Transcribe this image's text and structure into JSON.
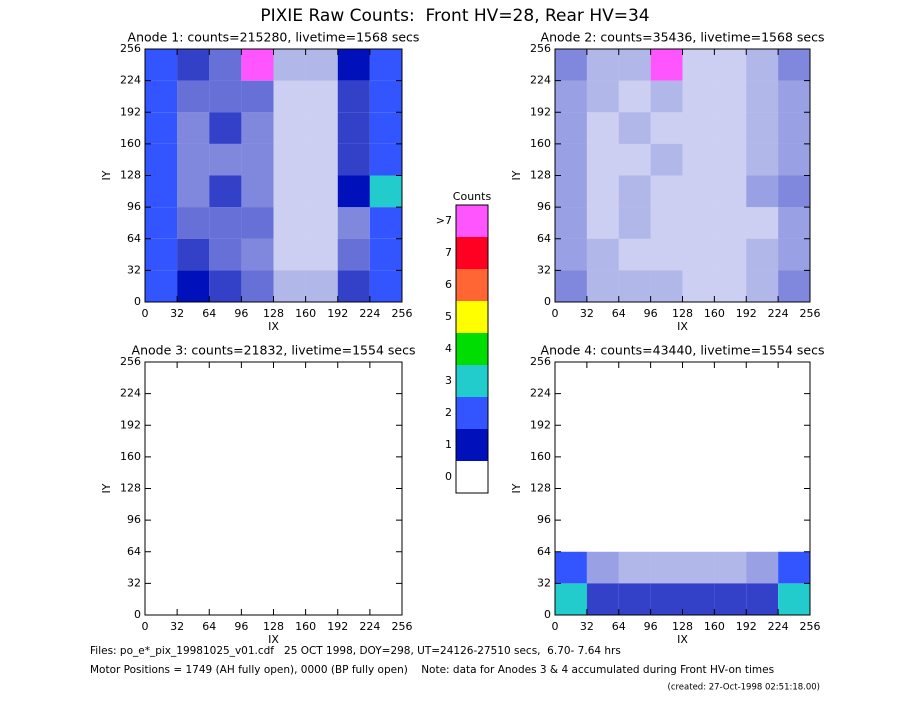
{
  "title": "PIXIE Raw Counts:  Front HV=28, Rear HV=34",
  "chart_data": [
    {
      "type": "heatmap",
      "title": "Anode 1: counts=215280, livetime=1568 secs",
      "xlabel": "IX",
      "ylabel": "IY",
      "xlim": [
        0,
        256
      ],
      "ylim": [
        0,
        256
      ],
      "xticks": [
        0,
        32,
        64,
        96,
        128,
        160,
        192,
        224,
        256
      ],
      "yticks": [
        0,
        32,
        64,
        96,
        128,
        160,
        192,
        224,
        256
      ],
      "values": [
        [
          2,
          1,
          0.8,
          0.6,
          0.3,
          0.3,
          0.8,
          2
        ],
        [
          1.8,
          0.8,
          0.6,
          0.5,
          0.2,
          0.2,
          0.6,
          1.8
        ],
        [
          1.5,
          0.6,
          0.6,
          0.6,
          0.2,
          0.2,
          0.5,
          1.5
        ],
        [
          1.5,
          0.5,
          0.8,
          0.5,
          0.2,
          0.2,
          1,
          3
        ],
        [
          1.5,
          0.5,
          0.5,
          0.5,
          0.2,
          0.2,
          0.8,
          2
        ],
        [
          1.5,
          0.5,
          0.8,
          0.5,
          0.2,
          0.2,
          0.8,
          1.8
        ],
        [
          1.5,
          0.6,
          0.6,
          0.6,
          0.2,
          0.2,
          0.8,
          1.8
        ],
        [
          2,
          0.8,
          0.6,
          8,
          0.3,
          0.3,
          1,
          2
        ]
      ]
    },
    {
      "type": "heatmap",
      "title": "Anode 2: counts=35436, livetime=1568 secs",
      "xlabel": "IX",
      "ylabel": "IY",
      "xlim": [
        0,
        256
      ],
      "ylim": [
        0,
        256
      ],
      "xticks": [
        0,
        32,
        64,
        96,
        128,
        160,
        192,
        224,
        256
      ],
      "yticks": [
        0,
        32,
        64,
        96,
        128,
        160,
        192,
        224,
        256
      ],
      "values": [
        [
          0.5,
          0.3,
          0.3,
          0.3,
          0.2,
          0.2,
          0.3,
          0.5
        ],
        [
          0.4,
          0.3,
          0.2,
          0.2,
          0.2,
          0.2,
          0.3,
          0.4
        ],
        [
          0.4,
          0.2,
          0.3,
          0.2,
          0.2,
          0.2,
          0.2,
          0.4
        ],
        [
          0.4,
          0.2,
          0.3,
          0.2,
          0.2,
          0.2,
          0.4,
          0.5
        ],
        [
          0.4,
          0.2,
          0.2,
          0.3,
          0.2,
          0.2,
          0.3,
          0.4
        ],
        [
          0.4,
          0.2,
          0.3,
          0.2,
          0.2,
          0.2,
          0.3,
          0.4
        ],
        [
          0.4,
          0.3,
          0.2,
          0.3,
          0.2,
          0.2,
          0.3,
          0.4
        ],
        [
          0.5,
          0.3,
          0.3,
          8,
          0.2,
          0.2,
          0.3,
          0.5
        ]
      ]
    },
    {
      "type": "heatmap",
      "title": "Anode 3: counts=21832, livetime=1554 secs",
      "xlabel": "IX",
      "ylabel": "IY",
      "xlim": [
        0,
        256
      ],
      "ylim": [
        0,
        256
      ],
      "xticks": [
        0,
        32,
        64,
        96,
        128,
        160,
        192,
        224,
        256
      ],
      "yticks": [
        0,
        32,
        64,
        96,
        128,
        160,
        192,
        224,
        256
      ],
      "values": [
        [
          0,
          0,
          0,
          0,
          0,
          0,
          0,
          0
        ],
        [
          0,
          0,
          0,
          0,
          0,
          0,
          0,
          0
        ],
        [
          0,
          0,
          0,
          0,
          0,
          0,
          0,
          0
        ],
        [
          0,
          0,
          0,
          0,
          0,
          0,
          0,
          0
        ],
        [
          0,
          0,
          0,
          0,
          0,
          0,
          0,
          0
        ],
        [
          0,
          0,
          0,
          0,
          0,
          0,
          0,
          0
        ],
        [
          0,
          0,
          0,
          0,
          0,
          0,
          0,
          0
        ],
        [
          0,
          0,
          0,
          0,
          0,
          0,
          0,
          0
        ]
      ]
    },
    {
      "type": "heatmap",
      "title": "Anode 4: counts=43440, livetime=1554 secs",
      "xlabel": "IX",
      "ylabel": "IY",
      "xlim": [
        0,
        256
      ],
      "ylim": [
        0,
        256
      ],
      "xticks": [
        0,
        32,
        64,
        96,
        128,
        160,
        192,
        224,
        256
      ],
      "yticks": [
        0,
        32,
        64,
        96,
        128,
        160,
        192,
        224,
        256
      ],
      "values": [
        [
          3,
          0.8,
          0.8,
          0.8,
          0.8,
          0.8,
          0.8,
          3
        ],
        [
          2,
          0.4,
          0.3,
          0.3,
          0.3,
          0.3,
          0.4,
          2
        ],
        [
          0,
          0,
          0,
          0,
          0,
          0,
          0,
          0
        ],
        [
          0,
          0,
          0,
          0,
          0,
          0,
          0,
          0
        ],
        [
          0,
          0,
          0,
          0,
          0,
          0,
          0,
          0
        ],
        [
          0,
          0,
          0,
          0,
          0,
          0,
          0,
          0
        ],
        [
          0,
          0,
          0,
          0,
          0,
          0,
          0,
          0
        ],
        [
          0,
          0,
          0,
          0,
          0,
          0,
          0,
          0
        ]
      ]
    }
  ],
  "colorbar": {
    "title": "Counts",
    "ticks": [
      {
        "value": 8,
        "label": ">7"
      },
      7,
      6,
      5,
      4,
      3,
      2,
      1,
      0
    ],
    "colors": [
      "#ff55ff",
      "#ff0022",
      "#ff6633",
      "#ffff00",
      "#00dd00",
      "#22cccc",
      "#3355ff",
      "#0011bb",
      "#ffffff"
    ]
  },
  "footer": [
    "Files: po_e*_pix_19981025_v01.cdf   25 OCT 1998, DOY=298, UT=24126-27510 secs,  6.70- 7.64 hrs",
    "Motor Positions = 1749 (AH fully open), 0000 (BP fully open)    Note: data for Anodes 3 & 4 accumulated during Front HV-on times",
    "(created: 27-Oct-1998 02:51:18.00)"
  ]
}
